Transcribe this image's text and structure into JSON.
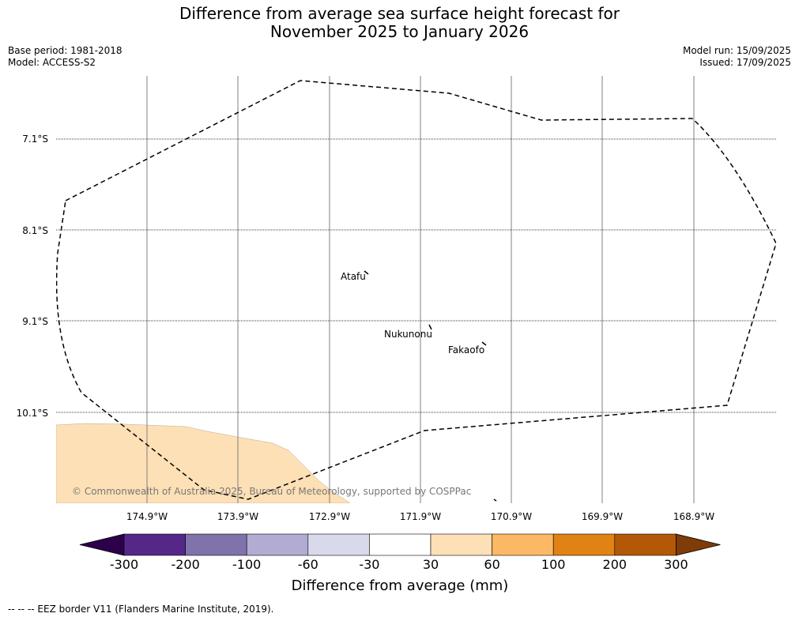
{
  "title": {
    "line1": "Difference from average sea surface height forecast for",
    "line2": "November 2025 to January 2026"
  },
  "meta_left": {
    "base_period": "Base period: 1981-2018",
    "model": "Model: ACCESS-S2"
  },
  "meta_right": {
    "model_run": "Model run: 15/09/2025",
    "issued": "Issued: 17/09/2025"
  },
  "map": {
    "lon_ticks": [
      "174.9°W",
      "173.9°W",
      "172.9°W",
      "171.9°W",
      "170.9°W",
      "169.9°W",
      "168.9°W"
    ],
    "lat_ticks": [
      "7.1°S",
      "8.1°S",
      "9.1°S",
      "10.1°S"
    ],
    "places": [
      "Atafu",
      "Nukunonu",
      "Fakaofo"
    ],
    "shaded_region_color": "#fee0b6",
    "copyright": "© Commonwealth of Australia 2025, Bureau of Meteorology, supported by COSPPac"
  },
  "colorbar": {
    "label": "Difference from average (mm)",
    "tick_labels": [
      "-300",
      "-200",
      "-100",
      "-60",
      "-30",
      "30",
      "60",
      "100",
      "200",
      "300"
    ],
    "colors": [
      "#2d004b",
      "#542788",
      "#8073ac",
      "#b2abd2",
      "#d8daeb",
      "#ffffff",
      "#fee0b6",
      "#fdb863",
      "#e08214",
      "#b35806",
      "#7f3b08"
    ]
  },
  "footer": "--  --  -- EEZ border V11 (Flanders Marine Institute, 2019)."
}
